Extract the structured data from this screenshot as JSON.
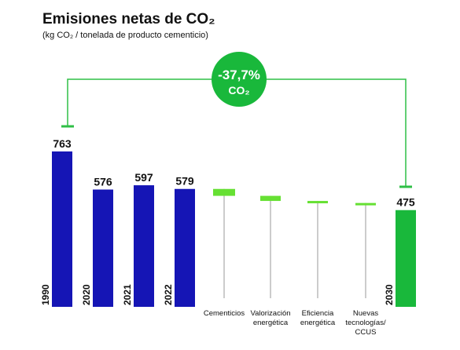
{
  "chart_data": {
    "type": "bar",
    "title": "Emisiones netas de CO₂",
    "subtitle": "(kg CO₂ / tonelada de producto cementicio)",
    "bars": [
      {
        "year": "1990",
        "value": 763
      },
      {
        "year": "2020",
        "value": 576
      },
      {
        "year": "2021",
        "value": 597
      },
      {
        "year": "2022",
        "value": 579
      }
    ],
    "levers": [
      {
        "label": [
          "Cementicios"
        ],
        "from": 579,
        "to": 545
      },
      {
        "label": [
          "Valorización",
          "energética"
        ],
        "from": 545,
        "to": 520
      },
      {
        "label": [
          "Eficiencia",
          "energética"
        ],
        "from": 520,
        "to": 510
      },
      {
        "label": [
          "Nuevas",
          "tecnologías/",
          "CCUS"
        ],
        "from": 510,
        "to": 502
      }
    ],
    "target": {
      "year": "2030",
      "value": 475
    },
    "reduction": {
      "value": "-37,7%",
      "unit": "CO₂"
    },
    "colors": {
      "blue": "#1515b5",
      "green": "#19b83b",
      "lever": "#66e033",
      "connector": "#2fbf46",
      "stem": "#999999"
    }
  }
}
